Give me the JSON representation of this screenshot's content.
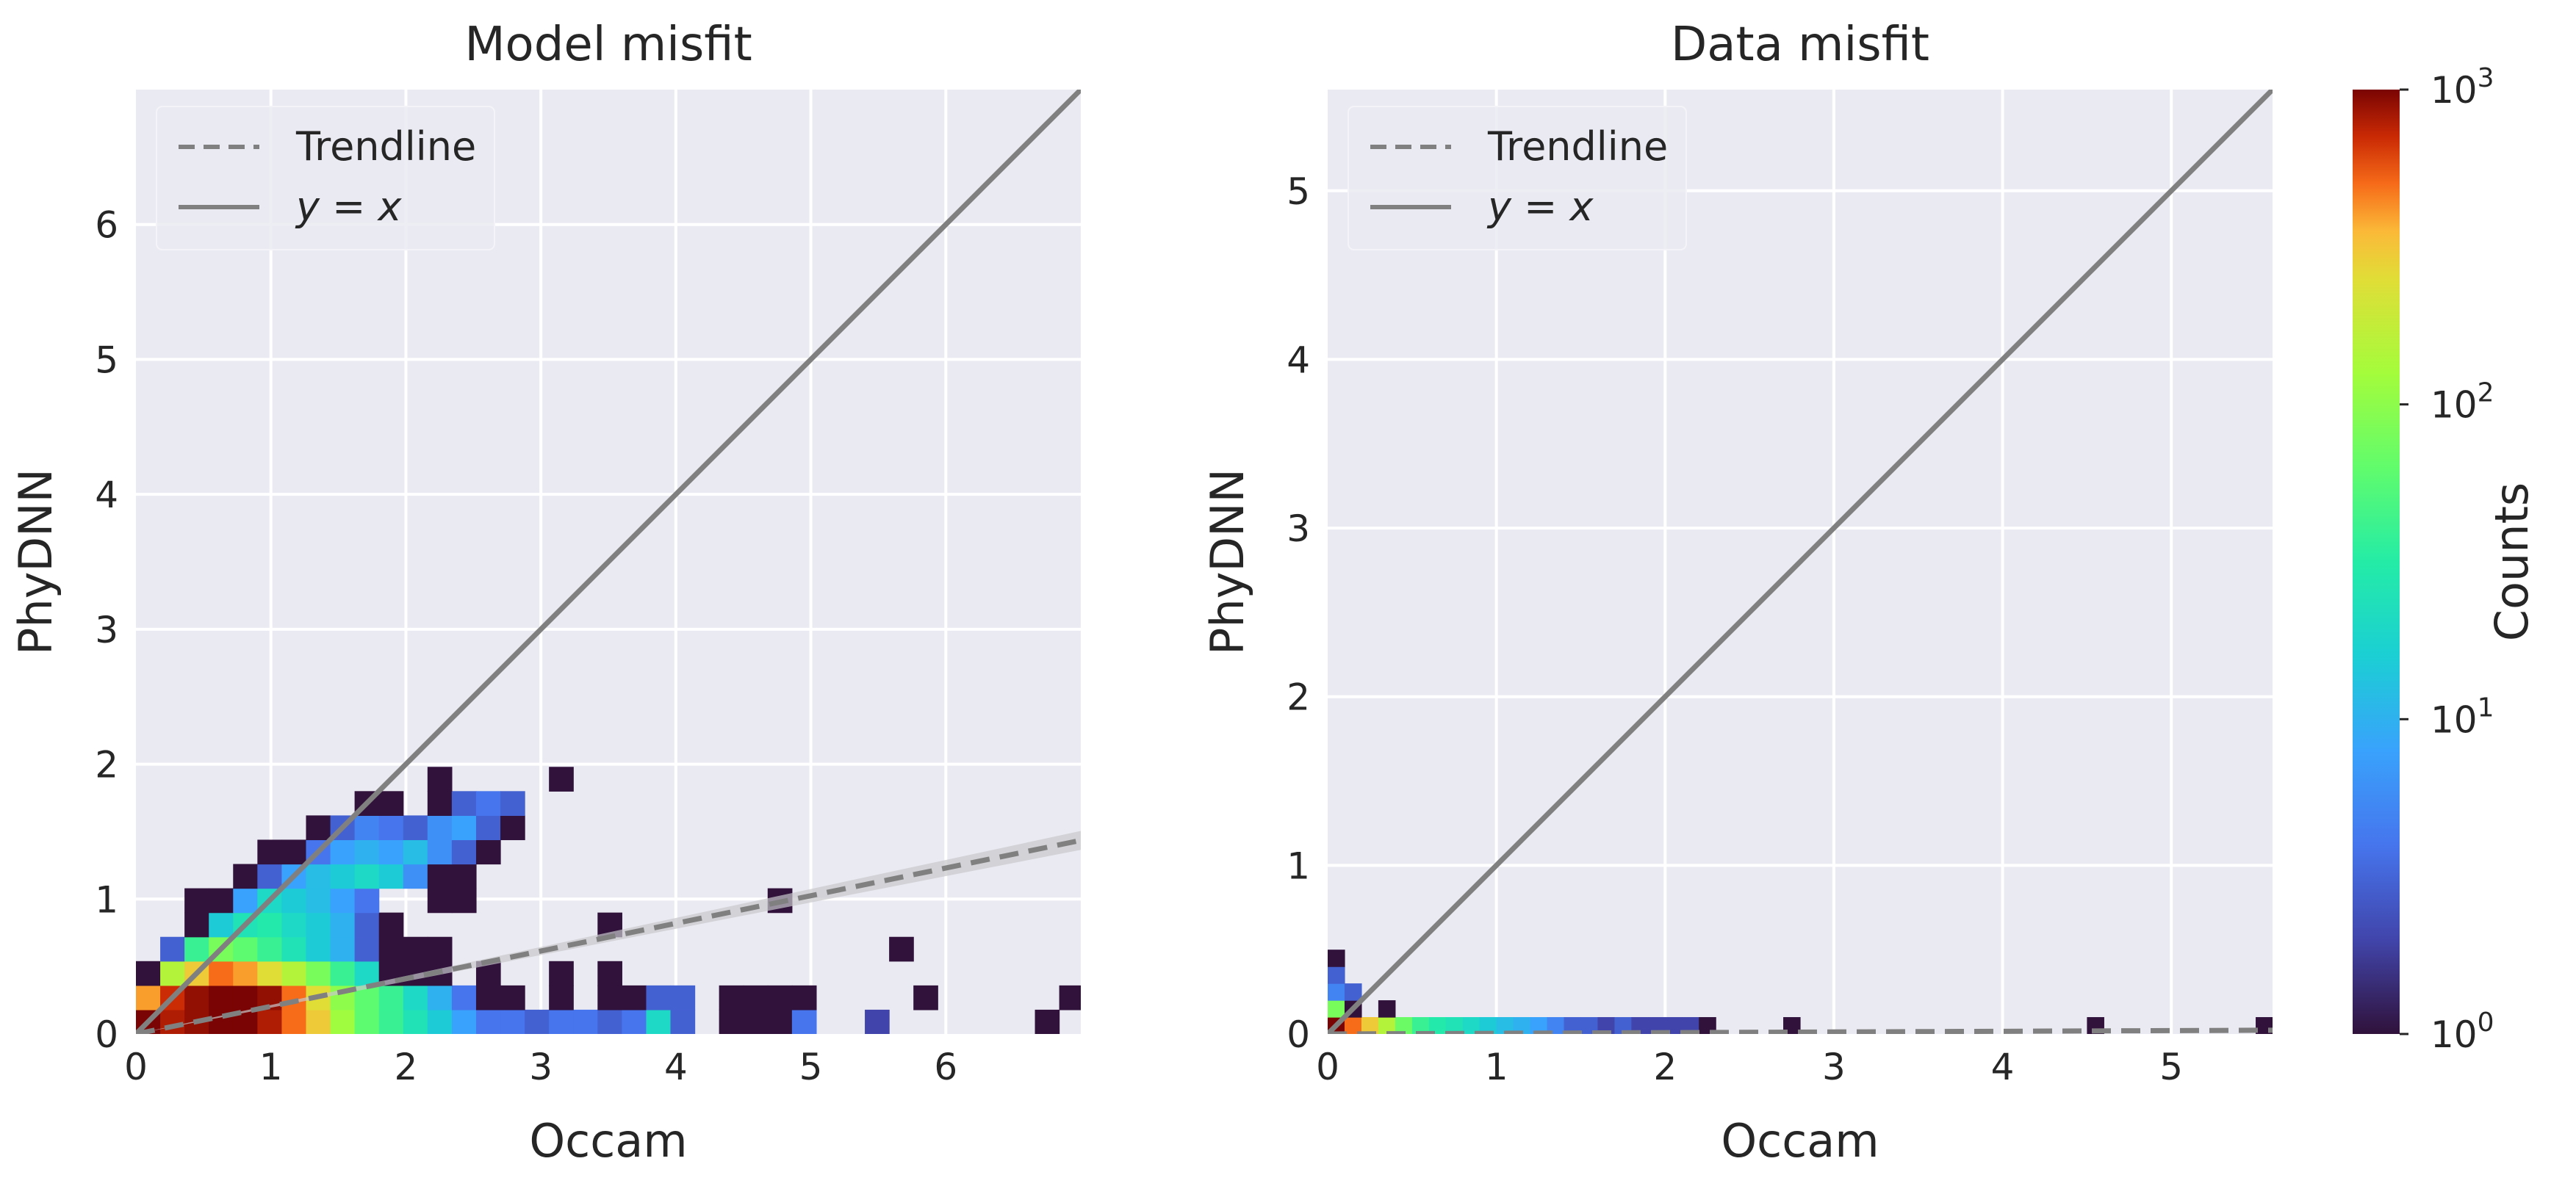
{
  "chart_data": [
    {
      "type": "heatmap",
      "title": "Model misfit",
      "xlabel": "Occam",
      "ylabel": "PhyDNN",
      "xlim": [
        0,
        7.0
      ],
      "ylim": [
        0,
        7.0
      ],
      "xticks": [
        "0",
        "1",
        "2",
        "3",
        "4",
        "5",
        "6"
      ],
      "yticks": [
        "0",
        "1",
        "2",
        "3",
        "4",
        "5",
        "6"
      ],
      "grid": true,
      "legend_position": "top-left",
      "legend": [
        {
          "label": "Trendline",
          "style": "dashed"
        },
        {
          "label": "y = x",
          "style": "solid"
        }
      ],
      "bin_size": 0.18,
      "bins": [
        [
          0.0,
          0.0,
          1000
        ],
        [
          0.18,
          0.0,
          800
        ],
        [
          0.36,
          0.0,
          900
        ],
        [
          0.54,
          0.0,
          1000
        ],
        [
          0.72,
          0.0,
          1000
        ],
        [
          0.9,
          0.0,
          800
        ],
        [
          1.08,
          0.0,
          500
        ],
        [
          1.26,
          0.0,
          300
        ],
        [
          1.44,
          0.0,
          120
        ],
        [
          1.62,
          0.0,
          60
        ],
        [
          1.8,
          0.0,
          40
        ],
        [
          1.98,
          0.0,
          25
        ],
        [
          2.16,
          0.0,
          15
        ],
        [
          2.34,
          0.0,
          8
        ],
        [
          2.52,
          0.0,
          4
        ],
        [
          2.7,
          0.0,
          4
        ],
        [
          2.88,
          0.0,
          3
        ],
        [
          3.06,
          0.0,
          4
        ],
        [
          3.24,
          0.0,
          4
        ],
        [
          3.42,
          0.0,
          3
        ],
        [
          3.6,
          0.0,
          4
        ],
        [
          3.78,
          0.0,
          20
        ],
        [
          3.96,
          0.0,
          3
        ],
        [
          4.32,
          0.0,
          1
        ],
        [
          4.5,
          0.0,
          1
        ],
        [
          4.68,
          0.0,
          1
        ],
        [
          4.86,
          0.0,
          4
        ],
        [
          5.4,
          0.0,
          2
        ],
        [
          0.0,
          0.18,
          400
        ],
        [
          0.18,
          0.18,
          700
        ],
        [
          0.36,
          0.18,
          900
        ],
        [
          0.54,
          0.18,
          1000
        ],
        [
          0.72,
          0.18,
          1000
        ],
        [
          0.9,
          0.18,
          900
        ],
        [
          1.08,
          0.18,
          500
        ],
        [
          1.26,
          0.18,
          250
        ],
        [
          1.44,
          0.18,
          100
        ],
        [
          1.62,
          0.18,
          60
        ],
        [
          1.8,
          0.18,
          40
        ],
        [
          1.98,
          0.18,
          20
        ],
        [
          2.16,
          0.18,
          10
        ],
        [
          2.34,
          0.18,
          4
        ],
        [
          2.52,
          0.18,
          1
        ],
        [
          2.7,
          0.18,
          1
        ],
        [
          3.06,
          0.18,
          1
        ],
        [
          3.42,
          0.18,
          1
        ],
        [
          3.6,
          0.18,
          1
        ],
        [
          3.78,
          0.18,
          3
        ],
        [
          3.96,
          0.18,
          3
        ],
        [
          4.32,
          0.18,
          1
        ],
        [
          4.5,
          0.18,
          1
        ],
        [
          4.68,
          0.18,
          1
        ],
        [
          4.86,
          0.18,
          1
        ],
        [
          5.76,
          0.18,
          1
        ],
        [
          6.84,
          0.18,
          1
        ],
        [
          6.66,
          0.0,
          1
        ],
        [
          0.0,
          0.36,
          1
        ],
        [
          0.18,
          0.36,
          150
        ],
        [
          0.36,
          0.36,
          300
        ],
        [
          0.54,
          0.36,
          500
        ],
        [
          0.72,
          0.36,
          400
        ],
        [
          0.9,
          0.36,
          250
        ],
        [
          1.08,
          0.36,
          150
        ],
        [
          1.26,
          0.36,
          80
        ],
        [
          1.44,
          0.36,
          40
        ],
        [
          1.62,
          0.36,
          20
        ],
        [
          1.8,
          0.36,
          1
        ],
        [
          1.98,
          0.36,
          1
        ],
        [
          2.16,
          0.36,
          1
        ],
        [
          2.52,
          0.36,
          1
        ],
        [
          3.06,
          0.36,
          1
        ],
        [
          3.42,
          0.36,
          1
        ],
        [
          0.18,
          0.54,
          3
        ],
        [
          0.36,
          0.54,
          40
        ],
        [
          0.54,
          0.54,
          80
        ],
        [
          0.72,
          0.54,
          60
        ],
        [
          0.9,
          0.54,
          40
        ],
        [
          1.08,
          0.54,
          25
        ],
        [
          1.26,
          0.54,
          15
        ],
        [
          1.44,
          0.54,
          10
        ],
        [
          1.62,
          0.54,
          3
        ],
        [
          1.8,
          0.54,
          1
        ],
        [
          1.98,
          0.54,
          1
        ],
        [
          2.16,
          0.54,
          1
        ],
        [
          0.36,
          0.72,
          1
        ],
        [
          0.54,
          0.72,
          15
        ],
        [
          0.72,
          0.72,
          25
        ],
        [
          0.9,
          0.72,
          30
        ],
        [
          1.08,
          0.72,
          20
        ],
        [
          1.26,
          0.72,
          15
        ],
        [
          1.44,
          0.72,
          10
        ],
        [
          1.62,
          0.72,
          3
        ],
        [
          1.8,
          0.72,
          1
        ],
        [
          3.42,
          0.72,
          1
        ],
        [
          5.58,
          0.54,
          1
        ],
        [
          0.36,
          0.9,
          1
        ],
        [
          0.54,
          0.9,
          1
        ],
        [
          0.72,
          0.9,
          8
        ],
        [
          0.9,
          0.9,
          20
        ],
        [
          1.08,
          0.9,
          15
        ],
        [
          1.26,
          0.9,
          12
        ],
        [
          1.44,
          0.9,
          8
        ],
        [
          1.62,
          0.9,
          4
        ],
        [
          2.16,
          0.9,
          1
        ],
        [
          2.34,
          0.9,
          1
        ],
        [
          4.68,
          0.9,
          1
        ],
        [
          0.72,
          1.08,
          1
        ],
        [
          0.9,
          1.08,
          3
        ],
        [
          1.08,
          1.08,
          8
        ],
        [
          1.26,
          1.08,
          12
        ],
        [
          1.44,
          1.08,
          15
        ],
        [
          1.62,
          1.08,
          20
        ],
        [
          1.8,
          1.08,
          15
        ],
        [
          1.98,
          1.08,
          6
        ],
        [
          2.16,
          1.08,
          1
        ],
        [
          2.34,
          1.08,
          1
        ],
        [
          0.9,
          1.26,
          1
        ],
        [
          1.08,
          1.26,
          1
        ],
        [
          1.26,
          1.26,
          4
        ],
        [
          1.44,
          1.26,
          8
        ],
        [
          1.62,
          1.26,
          10
        ],
        [
          1.8,
          1.26,
          8
        ],
        [
          1.98,
          1.26,
          12
        ],
        [
          2.16,
          1.26,
          6
        ],
        [
          2.34,
          1.26,
          3
        ],
        [
          2.52,
          1.26,
          1
        ],
        [
          1.26,
          1.44,
          1
        ],
        [
          1.44,
          1.44,
          3
        ],
        [
          1.62,
          1.44,
          5
        ],
        [
          1.8,
          1.44,
          4
        ],
        [
          1.98,
          1.44,
          3
        ],
        [
          2.16,
          1.44,
          6
        ],
        [
          2.34,
          1.44,
          8
        ],
        [
          2.52,
          1.44,
          3
        ],
        [
          2.7,
          1.44,
          1
        ],
        [
          1.62,
          1.62,
          1
        ],
        [
          1.8,
          1.62,
          1
        ],
        [
          2.16,
          1.62,
          1
        ],
        [
          2.34,
          1.62,
          3
        ],
        [
          2.52,
          1.62,
          4
        ],
        [
          2.7,
          1.62,
          3
        ],
        [
          2.16,
          1.8,
          1
        ],
        [
          3.06,
          1.8,
          1
        ]
      ]
    },
    {
      "type": "heatmap",
      "title": "Data misfit",
      "xlabel": "Occam",
      "ylabel": "PhyDNN",
      "xlim": [
        0,
        5.6
      ],
      "ylim": [
        0,
        5.6
      ],
      "xticks": [
        "0",
        "1",
        "2",
        "3",
        "4",
        "5"
      ],
      "yticks": [
        "0",
        "1",
        "2",
        "3",
        "4",
        "5"
      ],
      "grid": true,
      "legend_position": "top-left",
      "legend": [
        {
          "label": "Trendline",
          "style": "dashed"
        },
        {
          "label": "y = x",
          "style": "solid"
        }
      ],
      "bin_size": 0.1,
      "bins": [
        [
          0.0,
          0.0,
          1000
        ],
        [
          0.1,
          0.0,
          500
        ],
        [
          0.2,
          0.0,
          300
        ],
        [
          0.3,
          0.0,
          150
        ],
        [
          0.4,
          0.0,
          70
        ],
        [
          0.5,
          0.0,
          40
        ],
        [
          0.6,
          0.0,
          30
        ],
        [
          0.7,
          0.0,
          25
        ],
        [
          0.8,
          0.0,
          20
        ],
        [
          0.9,
          0.0,
          15
        ],
        [
          1.0,
          0.0,
          12
        ],
        [
          1.1,
          0.0,
          10
        ],
        [
          1.2,
          0.0,
          8
        ],
        [
          1.3,
          0.0,
          5
        ],
        [
          1.4,
          0.0,
          3
        ],
        [
          1.5,
          0.0,
          3
        ],
        [
          1.6,
          0.0,
          2
        ],
        [
          1.7,
          0.0,
          3
        ],
        [
          1.8,
          0.0,
          2
        ],
        [
          1.9,
          0.0,
          2
        ],
        [
          2.0,
          0.0,
          2
        ],
        [
          2.1,
          0.0,
          2
        ],
        [
          2.2,
          0.0,
          1
        ],
        [
          2.7,
          0.0,
          1
        ],
        [
          4.5,
          0.0,
          1
        ],
        [
          5.5,
          0.0,
          1
        ],
        [
          0.0,
          0.1,
          80
        ],
        [
          0.1,
          0.1,
          1
        ],
        [
          0.3,
          0.1,
          1
        ],
        [
          0.0,
          0.2,
          5
        ],
        [
          0.1,
          0.2,
          3
        ],
        [
          0.0,
          0.3,
          3
        ],
        [
          0.0,
          0.4,
          1
        ]
      ]
    }
  ],
  "colorbar": {
    "label": "Counts",
    "scale": "log",
    "min": 1,
    "max": 1000,
    "colormap": "turbo",
    "ticks": [
      {
        "base": "10",
        "exp": "0"
      },
      {
        "base": "10",
        "exp": "1"
      },
      {
        "base": "10",
        "exp": "2"
      },
      {
        "base": "10",
        "exp": "3"
      }
    ]
  },
  "trendlines": [
    {
      "panel": 0,
      "slope": 0.205,
      "intercept": 0.0,
      "band": 0.07
    },
    {
      "panel": 1,
      "slope": 0.004,
      "intercept": 0.0,
      "band": 0.0
    }
  ],
  "colors": {
    "plot_bg": "#eaeaf2",
    "grid": "#ffffff",
    "line": "#808080",
    "band": "#c8c8cc"
  }
}
